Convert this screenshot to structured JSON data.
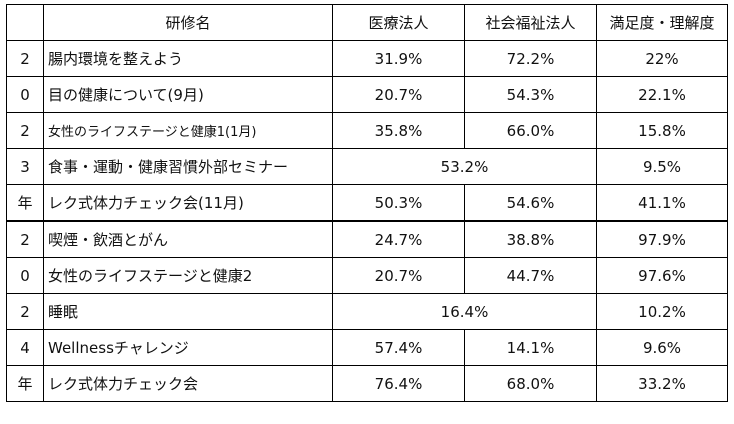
{
  "header": {
    "year": "",
    "name": "研修名",
    "medical": "医療法人",
    "welfare": "社会福祉法人",
    "satisfaction": "満足度・理解度"
  },
  "rows": [
    {
      "year": "2",
      "name": "腸内環境を整えよう",
      "medical": "31.9%",
      "welfare": "72.2%",
      "satisfaction": "22%"
    },
    {
      "year": "0",
      "name": "目の健康について(9月)",
      "medical": "20.7%",
      "welfare": "54.3%",
      "satisfaction": "22.1%"
    },
    {
      "year": "2",
      "name": "女性のライフステージと健康1(1月)",
      "medical": "35.8%",
      "welfare": "66.0%",
      "satisfaction": "15.8%"
    },
    {
      "year": "3",
      "name": "食事・運動・健康習慣外部セミナー",
      "merged": "53.2%",
      "satisfaction": "9.5%"
    },
    {
      "year": "年",
      "name": "レク式体力チェック会(11月)",
      "medical": "50.3%",
      "welfare": "54.6%",
      "satisfaction": "41.1%"
    },
    {
      "year": "2",
      "name": "喫煙・飲酒とがん",
      "medical": "24.7%",
      "welfare": "38.8%",
      "satisfaction": "97.9%"
    },
    {
      "year": "0",
      "name": "女性のライフステージと健康2",
      "medical": "20.7%",
      "welfare": "44.7%",
      "satisfaction": "97.6%"
    },
    {
      "year": "2",
      "name": "睡眠",
      "merged": "16.4%",
      "satisfaction": "10.2%"
    },
    {
      "year": "4",
      "name": "Wellnessチャレンジ",
      "medical": "57.4%",
      "welfare": "14.1%",
      "satisfaction": "9.6%"
    },
    {
      "year": "年",
      "name": "レク式体力チェック会",
      "medical": "76.4%",
      "welfare": "68.0%",
      "satisfaction": "33.2%"
    }
  ]
}
